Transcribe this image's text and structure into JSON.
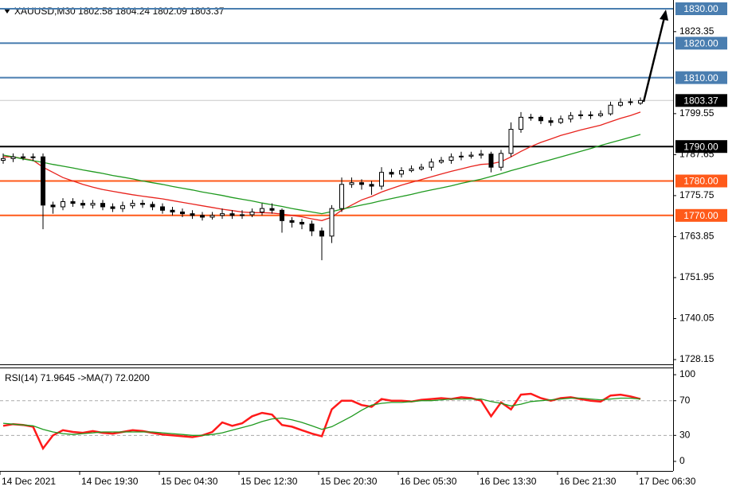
{
  "chart_data": [
    {
      "type": "candlestick",
      "header": "XAUUSD,M30  1802.58 1804.24 1802.09 1803.37",
      "categories": [
        "14 Dec 2021",
        null,
        null,
        null,
        null,
        null,
        null,
        null,
        "14 Dec 19:30",
        null,
        null,
        null,
        null,
        null,
        null,
        null,
        "15 Dec 04:30",
        null,
        null,
        null,
        null,
        null,
        null,
        null,
        "15 Dec 12:30",
        null,
        null,
        null,
        null,
        null,
        null,
        null,
        "15 Dec 20:30",
        null,
        null,
        null,
        null,
        null,
        null,
        null,
        "16 Dec 05:30",
        null,
        null,
        null,
        null,
        null,
        null,
        null,
        "16 Dec 13:30",
        null,
        null,
        null,
        null,
        null,
        null,
        null,
        "16 Dec 21:30",
        null,
        null,
        null,
        null,
        null,
        null,
        null,
        "17 Dec 06:30"
      ],
      "open": [
        1786,
        1786.5,
        1787,
        1786.8,
        1787,
        1773,
        1772.5,
        1774,
        1773.5,
        1773,
        1773.5,
        1772.5,
        1772,
        1772.8,
        1773.5,
        1773.2,
        1772.5,
        1771.5,
        1771,
        1770.5,
        1770,
        1769.5,
        1770,
        1770.5,
        1770,
        1770.2,
        1771,
        1772,
        1771.5,
        1768.5,
        1768,
        1767.5,
        1765.5,
        1764,
        1772,
        1779,
        1779.5,
        1779,
        1778.5,
        1782.5,
        1782,
        1783,
        1783.5,
        1784,
        1785.5,
        1786,
        1787,
        1787.2,
        1787.5,
        1787.8,
        1784,
        1788,
        1795,
        1798.5,
        1798.5,
        1797.5,
        1797,
        1798,
        1799,
        1799.2,
        1799,
        1799.5,
        1802,
        1802.8,
        1802.58
      ],
      "high": [
        1788,
        1788,
        1788,
        1788,
        1788,
        1774,
        1775,
        1775,
        1774.5,
        1774.5,
        1774.5,
        1773.5,
        1774,
        1774.5,
        1774.5,
        1774,
        1773.5,
        1772.5,
        1772,
        1771.5,
        1771,
        1771,
        1772,
        1771.5,
        1771.5,
        1772,
        1773.5,
        1773.5,
        1772,
        1769.5,
        1769,
        1768.5,
        1766.5,
        1773,
        1781,
        1781,
        1780.5,
        1780,
        1784,
        1783.5,
        1784,
        1784.5,
        1785,
        1786.5,
        1787,
        1788,
        1788.5,
        1788.5,
        1789,
        1788.5,
        1789,
        1797,
        1800,
        1799.5,
        1799,
        1798.5,
        1799,
        1800,
        1800.5,
        1800.2,
        1800.5,
        1803,
        1804,
        1804,
        1804.24
      ],
      "low": [
        1785,
        1785.5,
        1786,
        1785.8,
        1766,
        1770.5,
        1771.5,
        1772.5,
        1772,
        1772,
        1771.5,
        1771,
        1771,
        1772,
        1772.2,
        1771.5,
        1770.5,
        1770,
        1769.5,
        1769,
        1768.5,
        1768.8,
        1769,
        1769,
        1769,
        1769.5,
        1770,
        1770.5,
        1765,
        1766.5,
        1766,
        1764,
        1757,
        1762,
        1771,
        1778,
        1777.5,
        1776,
        1777.5,
        1781,
        1781,
        1782.5,
        1783,
        1783,
        1785,
        1785,
        1786,
        1786.5,
        1786.5,
        1782.5,
        1783,
        1787,
        1794,
        1797.5,
        1796.5,
        1796,
        1796.5,
        1797,
        1798,
        1798,
        1798.5,
        1799,
        1801.5,
        1802,
        1802.09
      ],
      "close": [
        1786.5,
        1787,
        1786.8,
        1787,
        1773,
        1772.5,
        1774,
        1773.5,
        1773,
        1773.5,
        1772.5,
        1772,
        1772.8,
        1773.5,
        1773.2,
        1772.5,
        1771.5,
        1771,
        1770.5,
        1770,
        1769.5,
        1770,
        1770.5,
        1770,
        1770.2,
        1771,
        1772,
        1771.5,
        1768.5,
        1768,
        1767.5,
        1765.5,
        1764,
        1772,
        1779,
        1779.5,
        1779,
        1778.5,
        1782.5,
        1782,
        1783,
        1783.5,
        1784,
        1785.5,
        1786,
        1787,
        1787.2,
        1787.5,
        1787.8,
        1784,
        1788,
        1795,
        1798.5,
        1798.5,
        1797.5,
        1797,
        1798,
        1799,
        1799.2,
        1799,
        1799.5,
        1802,
        1802.8,
        1803,
        1803.37
      ],
      "up_color": "#ffffff",
      "down_color": "#000000",
      "series": [
        {
          "color": "#e8231d",
          "values": [
            1787,
            1787,
            1786.5,
            1786,
            1784,
            1782.5,
            1781,
            1780,
            1779,
            1778.2,
            1777.5,
            1777,
            1776.5,
            1776,
            1775.6,
            1775.2,
            1774.8,
            1774.3,
            1773.8,
            1773.3,
            1772.8,
            1772.3,
            1771.8,
            1771.4,
            1771,
            1770.8,
            1770.8,
            1770.7,
            1770.4,
            1770,
            1769.6,
            1769,
            1768.5,
            1769.5,
            1771.5,
            1773,
            1774.5,
            1775.5,
            1776.8,
            1777.8,
            1778.8,
            1779.6,
            1780.4,
            1781.2,
            1782,
            1782.8,
            1783.5,
            1784.2,
            1784.8,
            1785,
            1785.6,
            1787,
            1788.6,
            1790,
            1791.2,
            1792.2,
            1793.2,
            1794,
            1794.8,
            1795.5,
            1796.2,
            1797.2,
            1798.2,
            1799,
            1800
          ]
        },
        {
          "color": "#1f9a1f",
          "values": [
            1787.5,
            1787,
            1786.4,
            1785.9,
            1785.4,
            1784.8,
            1784.3,
            1783.8,
            1783.2,
            1782.7,
            1782.2,
            1781.6,
            1781.1,
            1780.6,
            1780,
            1779.5,
            1779,
            1778.4,
            1777.9,
            1777.4,
            1776.8,
            1776.3,
            1775.8,
            1775.2,
            1774.7,
            1774.2,
            1773.6,
            1773.1,
            1772.6,
            1772,
            1771.5,
            1771,
            1770.5,
            1771.1,
            1771.8,
            1772.4,
            1773,
            1773.6,
            1774.3,
            1774.9,
            1775.5,
            1776.1,
            1776.8,
            1777.4,
            1778,
            1778.6,
            1779.3,
            1779.9,
            1780.5,
            1781.3,
            1782.1,
            1783,
            1783.8,
            1784.6,
            1785.4,
            1786.2,
            1787,
            1787.8,
            1788.6,
            1789.4,
            1790.3,
            1791.1,
            1791.9,
            1792.7,
            1793.5
          ]
        }
      ],
      "ylim": [
        1726.77,
        1832.54
      ],
      "yticks": [
        {
          "value": 1823.35,
          "label": "1823.35"
        },
        {
          "value": 1799.55,
          "label": "1799.55"
        },
        {
          "value": 1787.65,
          "label": "1787.65"
        },
        {
          "value": 1775.75,
          "label": "1775.75"
        },
        {
          "value": 1763.85,
          "label": "1763.85"
        },
        {
          "value": 1751.95,
          "label": "1751.95"
        },
        {
          "value": 1740.05,
          "label": "1740.05"
        },
        {
          "value": 1728.15,
          "label": "1728.15"
        }
      ],
      "levels": [
        {
          "value": 1830,
          "label": "1830.00",
          "color": "#4a7eb0"
        },
        {
          "value": 1820,
          "label": "1820.00",
          "color": "#4a7eb0"
        },
        {
          "value": 1810,
          "label": "1810.00",
          "color": "#4a7eb0"
        },
        {
          "value": 1790,
          "label": "1790.00",
          "color": "#000000"
        },
        {
          "value": 1780,
          "label": "1780.00",
          "color": "#ff5a1a"
        },
        {
          "value": 1770,
          "label": "1770.00",
          "color": "#ff5a1a"
        }
      ],
      "last_price": 1803.37
    },
    {
      "type": "line",
      "title": "RSI(14) 71.9645  ->MA(7) 72.0200",
      "series": [
        {
          "color": "#ff1a1a",
          "values": [
            41,
            43,
            42,
            40,
            15,
            30,
            36,
            34,
            33,
            35,
            33,
            32,
            34,
            36,
            35,
            33,
            31,
            30,
            29,
            28,
            30,
            34,
            45,
            41,
            44,
            52,
            56,
            54,
            42,
            40,
            36,
            32,
            29,
            60,
            70,
            70,
            65,
            63,
            72,
            70,
            70,
            69,
            71,
            72,
            73,
            72,
            74,
            73,
            70,
            52,
            68,
            60,
            77,
            78,
            73,
            70,
            73,
            74,
            72,
            70,
            69,
            76,
            77,
            75,
            72
          ]
        },
        {
          "color": "#1f9a1f",
          "values": [
            44,
            43,
            42,
            41,
            37,
            34,
            32,
            31,
            32,
            33,
            34,
            34,
            34,
            34,
            34,
            34,
            33,
            32,
            31,
            30,
            30,
            31,
            33,
            36,
            39,
            42,
            46,
            49,
            50,
            48,
            45,
            41,
            37,
            40,
            46,
            52,
            59,
            65,
            67,
            68,
            68,
            69,
            70,
            70,
            71,
            72,
            72,
            72,
            72,
            69,
            67,
            64,
            66,
            69,
            70,
            71,
            72,
            73,
            73,
            72,
            71,
            72,
            73,
            73,
            72
          ]
        }
      ],
      "ylim": [
        -11,
        108.3
      ],
      "yticks": [
        100,
        70,
        30,
        0
      ],
      "levels": [
        70,
        30
      ]
    }
  ]
}
